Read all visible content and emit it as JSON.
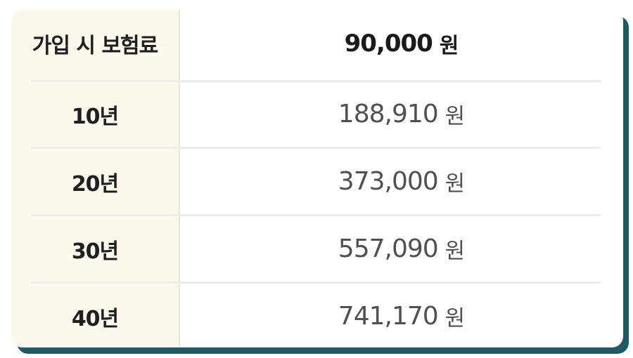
{
  "table": {
    "header": {
      "label": "가입 시 보험료",
      "amount": "90,000",
      "unit": "원"
    },
    "rows": [
      {
        "label": "10년",
        "amount": "188,910",
        "unit": "원"
      },
      {
        "label": "20년",
        "amount": "373,000",
        "unit": "원"
      },
      {
        "label": "30년",
        "amount": "557,090",
        "unit": "원"
      },
      {
        "label": "40년",
        "amount": "741,170",
        "unit": "원"
      }
    ]
  },
  "colors": {
    "card_shadow": "#1e5a66",
    "label_column_bg": "#fdf8ec",
    "divider": "#ececec",
    "header_text": "#1a1a1a",
    "value_text": "#505050"
  }
}
